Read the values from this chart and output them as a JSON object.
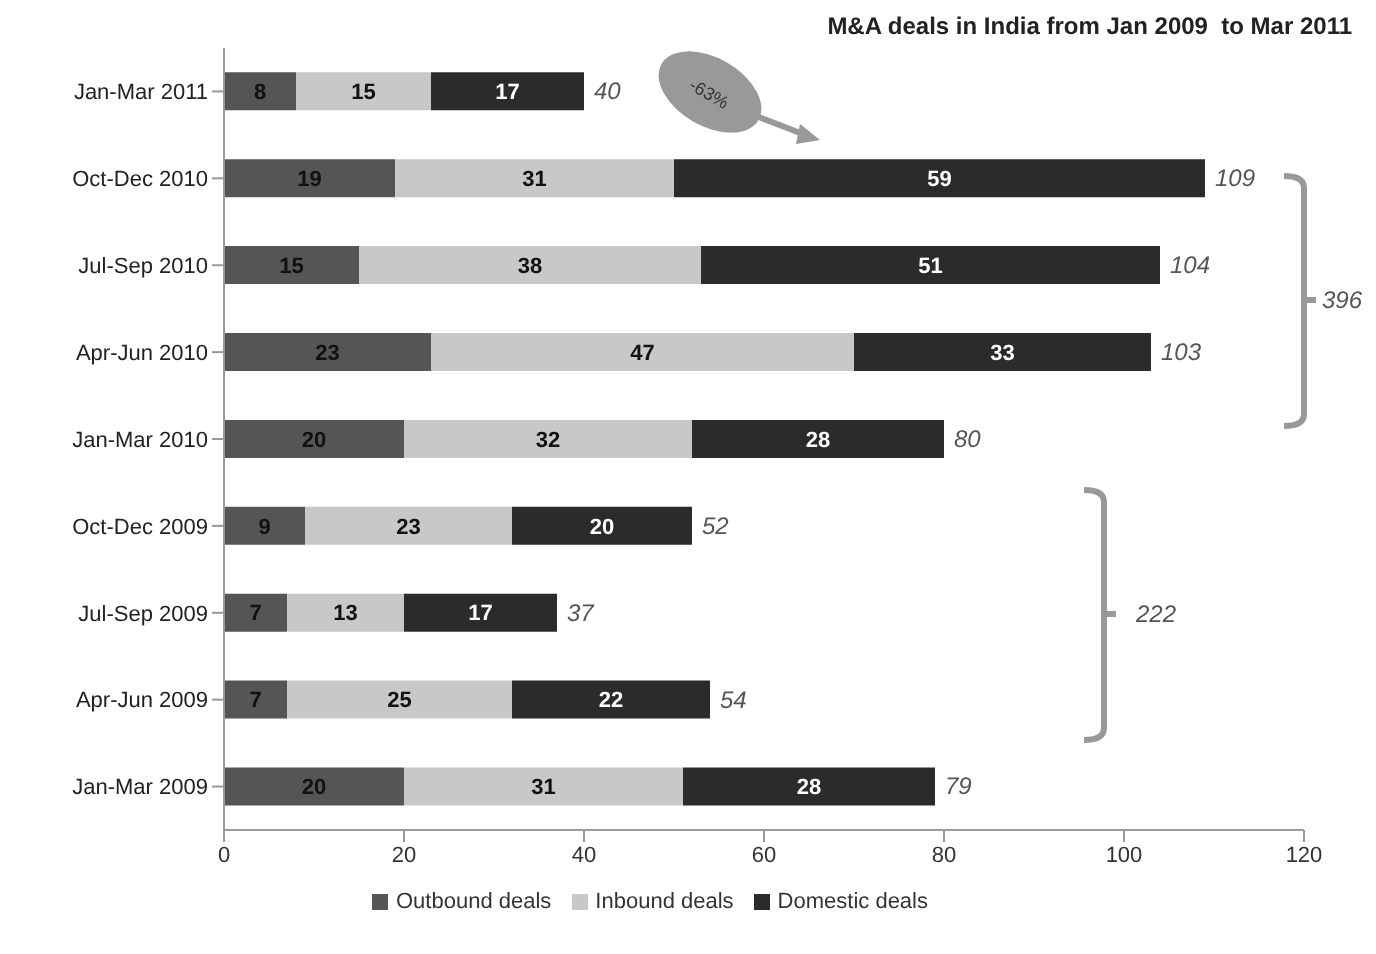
{
  "chart_data": {
    "type": "bar",
    "orientation": "horizontal",
    "stacked": true,
    "title": "M&A deals in India from Jan 2009  to Mar 2011",
    "categories": [
      "Jan-Mar 2011",
      "Oct-Dec 2010",
      "Jul-Sep 2010",
      "Apr-Jun 2010",
      "Jan-Mar 2010",
      "Oct-Dec 2009",
      "Jul-Sep 2009",
      "Apr-Jun 2009",
      "Jan-Mar 2009"
    ],
    "series": [
      {
        "name": "Outbound deals",
        "color": "#555555",
        "values": [
          8,
          19,
          15,
          23,
          20,
          9,
          7,
          7,
          20
        ]
      },
      {
        "name": "Inbound deals",
        "color": "#c8c8c8",
        "values": [
          15,
          31,
          38,
          47,
          32,
          23,
          13,
          25,
          31
        ]
      },
      {
        "name": "Domestic deals",
        "color": "#2b2b2b",
        "values": [
          17,
          59,
          51,
          33,
          28,
          20,
          17,
          22,
          28
        ]
      }
    ],
    "totals": [
      "40",
      "109",
      "104",
      "103",
      "80",
      "52",
      "37",
      "54",
      "79"
    ],
    "data_labels": true,
    "xlim": [
      0,
      120
    ],
    "xticks": [
      0,
      20,
      40,
      60,
      80,
      100,
      120
    ],
    "legend": "bottom",
    "annotations": [
      "-63%",
      "396",
      "222"
    ]
  }
}
